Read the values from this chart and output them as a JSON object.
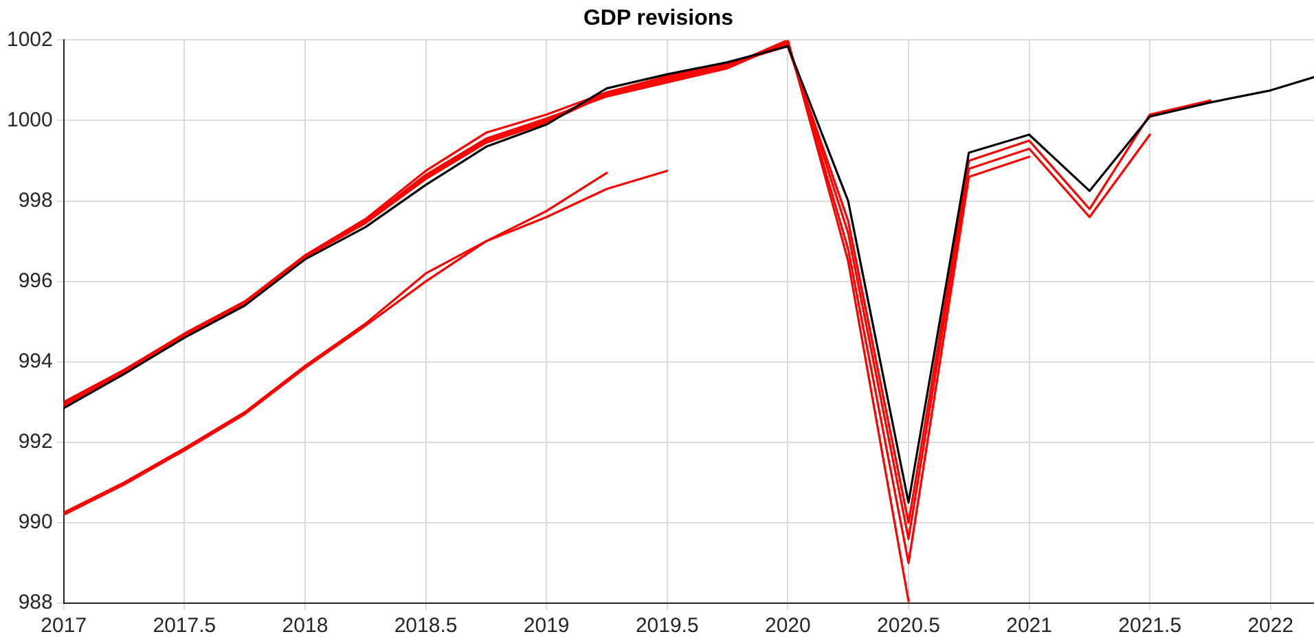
{
  "chart_data": {
    "type": "line",
    "title": "GDP revisions",
    "xlim": [
      2017,
      2022.18
    ],
    "xticks": [
      2017,
      {
        "value": 2017.5,
        "label": "2017.5"
      },
      2018,
      {
        "value": 2018.5,
        "label": "2018.5"
      },
      2019,
      {
        "value": 2019.5,
        "label": "2019.5"
      },
      2020,
      {
        "value": 2020.5,
        "label": "2020.5"
      },
      2021,
      {
        "value": 2021.5,
        "label": "2021.5"
      },
      2022
    ],
    "ylim": [
      988,
      1002
    ],
    "yticks": [
      988,
      990,
      992,
      994,
      996,
      998,
      1000,
      1002
    ],
    "grid": true,
    "legend": false,
    "marker": "none",
    "line_style": "solid",
    "series": [
      {
        "color": "#ff0000",
        "x": [
          2017,
          2017.25,
          2017.5,
          2017.75,
          2018,
          2018.25,
          2018.5,
          2018.75,
          2019,
          2019.25
        ],
        "values": [
          990.25,
          991.0,
          991.85,
          992.75,
          993.9,
          994.95,
          996.2,
          997.0,
          997.75,
          998.7
        ]
      },
      {
        "color": "#ff0000",
        "x": [
          2017,
          2017.25,
          2017.5,
          2017.75,
          2018,
          2018.25,
          2018.5,
          2018.75,
          2019,
          2019.25,
          2019.5
        ],
        "values": [
          990.2,
          990.95,
          991.8,
          992.7,
          993.85,
          994.9,
          996.0,
          997.0,
          997.6,
          998.3,
          998.75
        ]
      },
      {
        "color": "#ff0000",
        "x": [
          2017,
          2017.25,
          2017.5,
          2017.75,
          2018,
          2018.25,
          2018.5,
          2018.75,
          2019,
          2019.25,
          2019.5,
          2019.75,
          2020,
          2020.25,
          2020.5
        ],
        "values": [
          993.0,
          993.8,
          994.7,
          995.5,
          996.65,
          997.55,
          998.75,
          999.7,
          1000.15,
          1000.7,
          1001.05,
          1001.35,
          1002.0,
          996.5,
          988.05
        ]
      },
      {
        "color": "#ff0000",
        "x": [
          2017,
          2017.25,
          2017.5,
          2017.75,
          2018,
          2018.25,
          2018.5,
          2018.75,
          2019,
          2019.25,
          2019.5,
          2019.75,
          2020,
          2020.25,
          2020.5,
          2020.75,
          2021
        ],
        "values": [
          992.95,
          993.75,
          994.65,
          995.45,
          996.6,
          997.5,
          998.65,
          999.55,
          1000.05,
          1000.6,
          1000.95,
          1001.3,
          1001.95,
          996.8,
          989.0,
          998.6,
          999.1
        ]
      },
      {
        "color": "#ff0000",
        "x": [
          2017,
          2017.25,
          2017.5,
          2017.75,
          2018,
          2018.25,
          2018.5,
          2018.75,
          2019,
          2019.25,
          2019.5,
          2019.75,
          2020,
          2020.25,
          2020.5,
          2020.75,
          2021,
          2021.25,
          2021.5
        ],
        "values": [
          992.9,
          993.7,
          994.65,
          995.45,
          996.6,
          997.45,
          998.55,
          999.45,
          999.95,
          1000.65,
          1001.0,
          1001.35,
          1001.9,
          997.2,
          989.6,
          998.8,
          999.3,
          997.6,
          999.65
        ]
      },
      {
        "color": "#ff0000",
        "x": [
          2017,
          2017.25,
          2017.5,
          2017.75,
          2018,
          2018.25,
          2018.5,
          2018.75,
          2019,
          2019.25,
          2019.5,
          2019.75,
          2020,
          2020.25,
          2020.5,
          2020.75,
          2021,
          2021.25,
          2021.5,
          2021.75
        ],
        "values": [
          992.9,
          993.75,
          994.7,
          995.5,
          996.6,
          997.5,
          998.6,
          999.5,
          1000.0,
          1000.7,
          1001.1,
          1001.4,
          1001.85,
          997.5,
          990.0,
          999.0,
          999.5,
          997.8,
          1000.15,
          1000.5
        ]
      },
      {
        "color": "#000000",
        "x": [
          2017,
          2017.25,
          2017.5,
          2017.75,
          2018,
          2018.25,
          2018.5,
          2018.75,
          2019,
          2019.25,
          2019.5,
          2019.75,
          2020,
          2020.25,
          2020.5,
          2020.75,
          2021,
          2021.25,
          2021.5,
          2021.75,
          2022,
          2022.18
        ],
        "values": [
          992.85,
          993.7,
          994.6,
          995.4,
          996.55,
          997.35,
          998.4,
          999.35,
          999.9,
          1000.8,
          1001.15,
          1001.45,
          1001.85,
          998.0,
          990.5,
          999.2,
          999.65,
          998.25,
          1000.1,
          1000.45,
          1000.75,
          1001.08
        ]
      }
    ]
  }
}
